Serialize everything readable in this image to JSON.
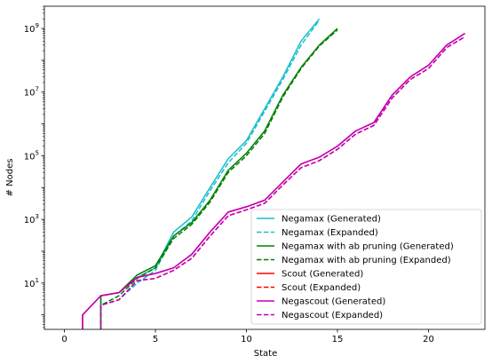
{
  "chart_data": {
    "type": "line",
    "title": "",
    "xlabel": "State",
    "ylabel": "# Nodes",
    "xlim": [
      -1.1,
      23.1
    ],
    "ylim": [
      0.35,
      5000000000
    ],
    "y_scale": "log",
    "x_ticks": [
      0,
      5,
      10,
      15,
      20
    ],
    "x_tick_labels": [
      "0",
      "5",
      "10",
      "15",
      "20"
    ],
    "y_ticks": [
      10,
      1000,
      100000,
      10000000,
      1000000000
    ],
    "y_tick_labels": [
      "10^1",
      "10^3",
      "10^5",
      "10^7",
      "10^9"
    ],
    "grid": false,
    "legend_position": "lower-right",
    "series": [
      {
        "name": "Negamax (Generated)",
        "color": "#17becf",
        "style": "solid",
        "x": [
          2,
          3,
          4,
          5,
          6,
          7,
          8,
          9,
          10,
          11,
          12,
          13,
          14
        ],
        "y": [
          4,
          5,
          15,
          30,
          400,
          1200,
          10000,
          80000,
          300000,
          3000000,
          30000000,
          400000000,
          2000000000
        ]
      },
      {
        "name": "Negamax (Expanded)",
        "color": "#17becf",
        "style": "dashed",
        "x": [
          2,
          3,
          4,
          5,
          6,
          7,
          8,
          9,
          10,
          11,
          12,
          13,
          14
        ],
        "y": [
          2,
          3,
          10,
          25,
          300,
          900,
          8000,
          60000,
          250000,
          2500000,
          25000000,
          300000000,
          1800000000
        ]
      },
      {
        "name": "Negamax with ab pruning (Generated)",
        "color": "#008000",
        "style": "solid",
        "x": [
          2,
          3,
          4,
          5,
          6,
          7,
          8,
          9,
          10,
          11,
          12,
          13,
          14,
          15
        ],
        "y": [
          4,
          5,
          18,
          35,
          300,
          800,
          4000,
          35000,
          120000,
          600000,
          8000000,
          60000000,
          300000000,
          1000000000
        ]
      },
      {
        "name": "Negamax with ab pruning (Expanded)",
        "color": "#008000",
        "style": "dashed",
        "x": [
          2,
          3,
          4,
          5,
          6,
          7,
          8,
          9,
          10,
          11,
          12,
          13,
          14,
          15
        ],
        "y": [
          2,
          4,
          14,
          30,
          250,
          700,
          3500,
          30000,
          100000,
          500000,
          7000000,
          55000000,
          280000000,
          900000000
        ]
      },
      {
        "name": "Scout (Generated)",
        "color": "#ff0000",
        "style": "solid",
        "x": [
          1,
          2,
          3,
          4,
          5,
          6,
          7,
          8,
          9,
          10,
          11,
          12,
          13,
          14,
          15,
          16,
          17,
          18,
          19,
          20,
          21,
          22
        ],
        "y": [
          1,
          4,
          5,
          15,
          20,
          30,
          80,
          400,
          1700,
          2500,
          4000,
          15000,
          55000,
          90000,
          200000,
          600000,
          1100000,
          8000000,
          30000000,
          70000000,
          300000000,
          700000000
        ]
      },
      {
        "name": "Scout (Expanded)",
        "color": "#ff0000",
        "style": "dashed",
        "x": [
          2,
          3,
          4,
          5,
          6,
          7,
          8,
          9,
          10,
          11,
          12,
          13,
          14,
          15,
          16,
          17,
          18,
          19,
          20,
          21,
          22
        ],
        "y": [
          2,
          3,
          12,
          14,
          25,
          60,
          300,
          1300,
          2000,
          3200,
          12000,
          42000,
          70000,
          160000,
          480000,
          900000,
          6500000,
          25000000,
          55000000,
          250000000,
          550000000
        ]
      },
      {
        "name": "Negascout (Generated)",
        "color": "#bf00bf",
        "style": "solid",
        "x": [
          1,
          2,
          3,
          4,
          5,
          6,
          7,
          8,
          9,
          10,
          11,
          12,
          13,
          14,
          15,
          16,
          17,
          18,
          19,
          20,
          21,
          22
        ],
        "y": [
          1,
          4,
          5,
          15,
          20,
          30,
          80,
          400,
          1700,
          2500,
          4000,
          15000,
          55000,
          90000,
          200000,
          600000,
          1100000,
          8000000,
          30000000,
          70000000,
          300000000,
          700000000
        ]
      },
      {
        "name": "Negascout (Expanded)",
        "color": "#bf00bf",
        "style": "dashed",
        "x": [
          2,
          3,
          4,
          5,
          6,
          7,
          8,
          9,
          10,
          11,
          12,
          13,
          14,
          15,
          16,
          17,
          18,
          19,
          20,
          21,
          22
        ],
        "y": [
          2,
          3,
          12,
          14,
          25,
          60,
          300,
          1300,
          2000,
          3200,
          12000,
          42000,
          70000,
          160000,
          480000,
          900000,
          6500000,
          25000000,
          55000000,
          250000000,
          550000000
        ]
      }
    ]
  }
}
